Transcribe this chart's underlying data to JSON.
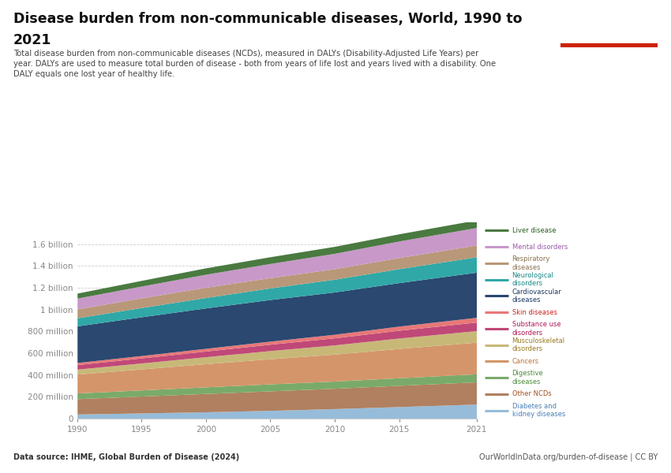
{
  "title_line1": "Disease burden from non-communicable diseases, World, 1990 to",
  "title_line2": "2021",
  "subtitle": "Total disease burden from non-communicable diseases (NCDs), measured in DALYs (Disability-Adjusted Life Years) per\nyear. DALYs are used to measure total burden of disease - both from years of life lost and years lived with a disability. One\nDALY equals one lost year of healthy life.",
  "datasource": "Data source: IHME, Global Burden of Disease (2024)",
  "credit": "OurWorldInData.org/burden-of-disease | CC BY",
  "years": [
    1990,
    1995,
    2000,
    2005,
    2010,
    2015,
    2021
  ],
  "series": [
    {
      "name": "Diabetes and\nkidney diseases",
      "color": "#97bcd9",
      "label_color": "#4a7fb5",
      "values": [
        38,
        47,
        57,
        69,
        84,
        101,
        122
      ]
    },
    {
      "name": "Other NCDs",
      "color": "#b08060",
      "label_color": "#a05020",
      "values": [
        130,
        143,
        155,
        165,
        172,
        180,
        188
      ]
    },
    {
      "name": "Digestive\ndiseases",
      "color": "#7aaa6a",
      "label_color": "#4a8a3a",
      "values": [
        48,
        52,
        56,
        59,
        61,
        64,
        68
      ]
    },
    {
      "name": "Cancers",
      "color": "#d4956a",
      "label_color": "#c07030",
      "values": [
        160,
        178,
        196,
        213,
        228,
        248,
        268
      ]
    },
    {
      "name": "Musculoskeletal\ndisorders",
      "color": "#c8b878",
      "label_color": "#9a7a20",
      "values": [
        42,
        50,
        59,
        69,
        78,
        88,
        98
      ]
    },
    {
      "name": "Substance use\ndisorders",
      "color": "#c04878",
      "label_color": "#b01858",
      "values": [
        38,
        43,
        48,
        54,
        60,
        66,
        72
      ]
    },
    {
      "name": "Skin diseases",
      "color": "#e87878",
      "label_color": "#cc2020",
      "values": [
        18,
        20,
        23,
        26,
        30,
        35,
        40
      ]
    },
    {
      "name": "Cardiovascular\ndiseases",
      "color": "#2a4870",
      "label_color": "#1a3860",
      "values": [
        310,
        328,
        342,
        352,
        358,
        368,
        382
      ]
    },
    {
      "name": "Neurological\ndisorders",
      "color": "#30a8a8",
      "label_color": "#1a8888",
      "values": [
        68,
        78,
        88,
        98,
        108,
        118,
        130
      ]
    },
    {
      "name": "Respiratory\ndiseases",
      "color": "#b89878",
      "label_color": "#887050",
      "values": [
        75,
        82,
        87,
        87,
        89,
        94,
        100
      ]
    },
    {
      "name": "Mental disorders",
      "color": "#c898c8",
      "label_color": "#9858a8",
      "values": [
        92,
        100,
        110,
        120,
        130,
        140,
        148
      ]
    },
    {
      "name": "Liver disease",
      "color": "#4a7a40",
      "label_color": "#2a5a20",
      "values": [
        42,
        48,
        54,
        57,
        59,
        61,
        64
      ]
    }
  ],
  "ylim_max": 1800000000,
  "yticks": [
    0,
    200000000,
    400000000,
    600000000,
    800000000,
    1000000000,
    1200000000,
    1400000000,
    1600000000
  ],
  "ytick_labels": [
    "0",
    "200 million",
    "400 million",
    "600 million",
    "800 million",
    "1 billion",
    "1.2 billion",
    "1.4 billion",
    "1.6 billion"
  ],
  "background_color": "#ffffff",
  "logo_bg_color": "#1a3864",
  "logo_red_color": "#cc2200",
  "grid_color": "#cccccc",
  "tick_color": "#888888"
}
